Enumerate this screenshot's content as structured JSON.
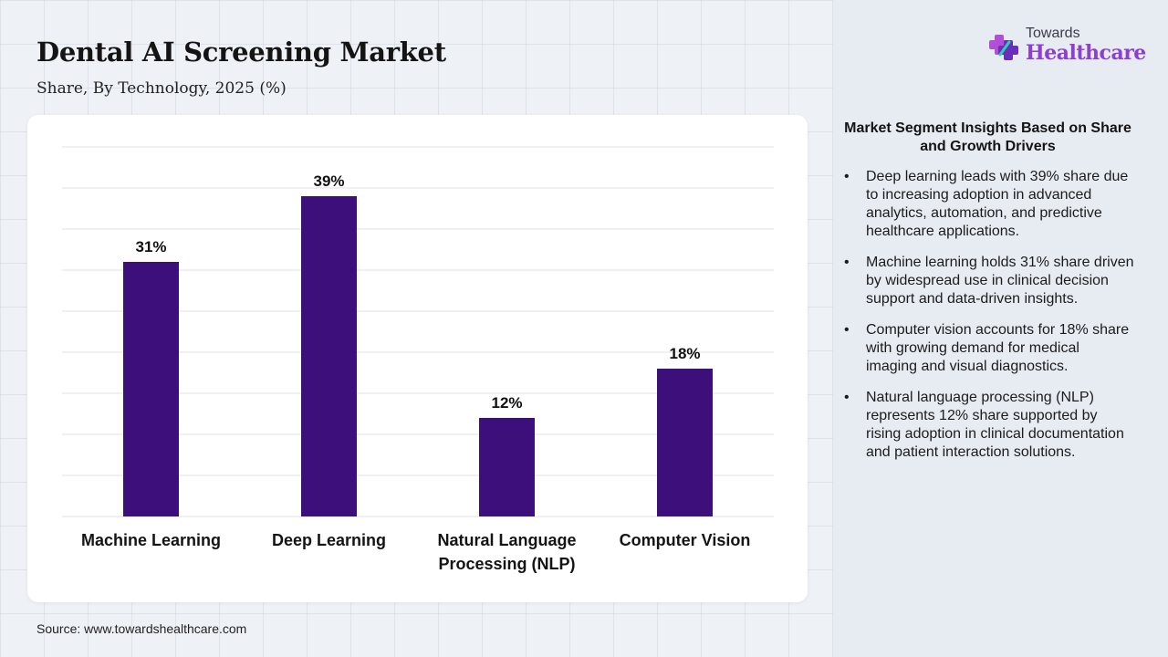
{
  "title": "Dental AI Screening Market",
  "subtitle": "Share, By Technology, 2025 (%)",
  "source": "Source: www.towardshealthcare.com",
  "logo": {
    "small_text": "Towards",
    "big_text": "Healthcare"
  },
  "insights": {
    "title": "Market Segment Insights Based on Share and Growth Drivers",
    "items": [
      "Deep learning leads with 39% share due to increasing adoption in advanced analytics, automation, and predictive healthcare applications.",
      "Machine learning holds 31% share driven by widespread use in clinical decision support and data-driven insights.",
      "Computer vision accounts for 18% share with growing demand for medical imaging and visual diagnostics.",
      "Natural language processing (NLP) represents 12% share supported by rising adoption in clinical documentation and patient interaction solutions."
    ]
  },
  "colors": {
    "bar": "#3d0f7a",
    "grid": "#e2e2e2",
    "logo_accent": "#8c3fd0"
  },
  "chart_data": {
    "type": "bar",
    "categories": [
      "Machine Learning",
      "Deep Learning",
      "Natural Language Processing (NLP)",
      "Computer Vision"
    ],
    "category_lines": [
      [
        "Machine Learning"
      ],
      [
        "Deep Learning"
      ],
      [
        "Natural Language",
        "Processing (NLP)"
      ],
      [
        "Computer Vision"
      ]
    ],
    "values": [
      31,
      39,
      12,
      18
    ],
    "value_labels": [
      "31%",
      "39%",
      "12%",
      "18%"
    ],
    "ylim": [
      0,
      45
    ],
    "grid": true,
    "y_axis_visible": false,
    "xlabel": "",
    "ylabel": ""
  }
}
